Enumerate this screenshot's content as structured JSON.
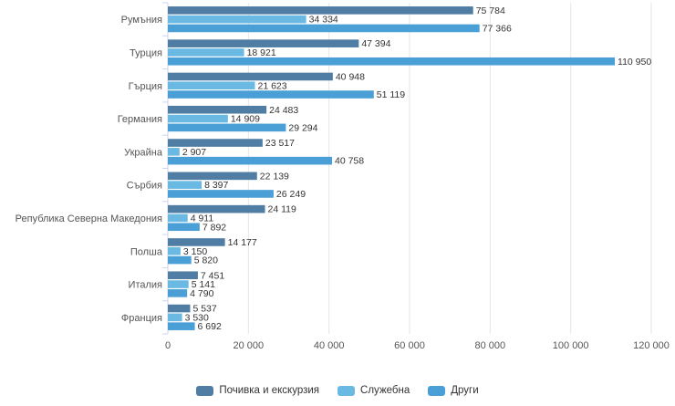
{
  "chart_data": {
    "type": "bar",
    "orientation": "horizontal",
    "categories": [
      "Румъния",
      "Турция",
      "Гърция",
      "Германия",
      "Украйна",
      "Сърбия",
      "Република Северна Македония",
      "Полша",
      "Италия",
      "Франция"
    ],
    "series": [
      {
        "name": "Почивка и екскурзия",
        "color": "#4f7da3",
        "values": [
          75784,
          47394,
          40948,
          24483,
          23517,
          22139,
          24119,
          14177,
          7451,
          5537
        ]
      },
      {
        "name": "Служебна",
        "color": "#6ab9e3",
        "values": [
          34334,
          18921,
          21623,
          14909,
          2907,
          8397,
          4911,
          3150,
          5141,
          3530
        ]
      },
      {
        "name": "Други",
        "color": "#4a9fd6",
        "values": [
          77366,
          110950,
          51119,
          29294,
          40758,
          26249,
          7892,
          5820,
          4790,
          6692
        ]
      }
    ],
    "value_labels": [
      [
        "75 784",
        "47 394",
        "40 948",
        "24 483",
        "23 517",
        "22 139",
        "24 119",
        "14 177",
        "7 451",
        "5 537"
      ],
      [
        "34 334",
        "18 921",
        "21 623",
        "14 909",
        "2 907",
        "8 397",
        "4 911",
        "3 150",
        "5 141",
        "3 530"
      ],
      [
        "77 366",
        "110 950",
        "51 119",
        "29 294",
        "40 758",
        "26 249",
        "7 892",
        "5 820",
        "4 790",
        "6 692"
      ]
    ],
    "xticks": [
      0,
      20000,
      40000,
      60000,
      80000,
      100000,
      120000
    ],
    "xtick_labels": [
      "0",
      "20 000",
      "40 000",
      "60 000",
      "80 000",
      "100 000",
      "120 000"
    ],
    "xlim": [
      0,
      120000
    ],
    "grid": "vertical",
    "legend_position": "bottom-center"
  }
}
